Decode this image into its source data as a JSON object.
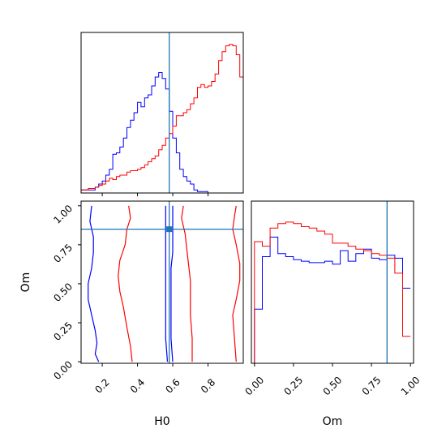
{
  "chart_data": {
    "type": "corner",
    "parameters": [
      "H0",
      "Om"
    ],
    "truths": {
      "H0": 0.58,
      "Om": 0.85
    },
    "colors": {
      "blue": "#0000ff",
      "red": "#ff0000",
      "truth": "#1f77b4"
    },
    "histograms": {
      "H0": {
        "bin_edges": [
          0.08,
          0.1,
          0.12,
          0.14,
          0.16,
          0.18,
          0.2,
          0.22,
          0.24,
          0.26,
          0.28,
          0.3,
          0.32,
          0.34,
          0.36,
          0.38,
          0.4,
          0.42,
          0.44,
          0.46,
          0.48,
          0.5,
          0.52,
          0.54,
          0.56,
          0.58,
          0.6,
          0.62,
          0.64,
          0.66,
          0.68,
          0.7,
          0.72,
          0.74,
          0.76,
          0.78,
          0.8,
          0.82,
          0.84,
          0.86,
          0.88,
          0.9,
          0.92,
          0.94,
          0.96,
          0.98,
          1.0
        ],
        "series": [
          {
            "color": "blue",
            "values": [
              0.02,
              0.02,
              0.02,
              0.02,
              0.04,
              0.06,
              0.08,
              0.12,
              0.16,
              0.26,
              0.27,
              0.31,
              0.37,
              0.44,
              0.49,
              0.54,
              0.61,
              0.58,
              0.64,
              0.66,
              0.72,
              0.78,
              0.81,
              0.77,
              0.7,
              0.55,
              0.37,
              0.27,
              0.16,
              0.11,
              0.08,
              0.06,
              0.02,
              0.01,
              0.01,
              0.01,
              0,
              0,
              0,
              0,
              0,
              0,
              0,
              0,
              0,
              0
            ]
          },
          {
            "color": "red",
            "values": [
              0.02,
              0.02,
              0.03,
              0.03,
              0.04,
              0.05,
              0.06,
              0.08,
              0.1,
              0.09,
              0.11,
              0.12,
              0.12,
              0.14,
              0.15,
              0.15,
              0.16,
              0.17,
              0.19,
              0.21,
              0.23,
              0.25,
              0.29,
              0.32,
              0.37,
              0.4,
              0.45,
              0.52,
              0.52,
              0.54,
              0.56,
              0.6,
              0.64,
              0.71,
              0.73,
              0.71,
              0.72,
              0.75,
              0.8,
              0.89,
              0.95,
              0.99,
              1.0,
              0.99,
              0.93,
              0.78
            ]
          }
        ],
        "xlim": [
          0.08,
          1.0
        ],
        "xticks": [
          0.2,
          0.4,
          0.6,
          0.8
        ]
      },
      "Om": {
        "bin_edges": [
          0.0,
          0.05,
          0.1,
          0.15,
          0.2,
          0.25,
          0.3,
          0.35,
          0.4,
          0.45,
          0.5,
          0.55,
          0.6,
          0.65,
          0.7,
          0.75,
          0.8,
          0.85,
          0.9,
          0.95,
          1.0
        ],
        "series": [
          {
            "color": "blue",
            "values": [
              0.36,
              0.71,
              0.84,
              0.73,
              0.71,
              0.69,
              0.68,
              0.67,
              0.67,
              0.68,
              0.66,
              0.75,
              0.68,
              0.73,
              0.76,
              0.7,
              0.69,
              0.72,
              0.7,
              0.5
            ]
          },
          {
            "color": "red",
            "values": [
              0.81,
              0.78,
              0.9,
              0.93,
              0.94,
              0.93,
              0.91,
              0.9,
              0.88,
              0.86,
              0.8,
              0.8,
              0.78,
              0.76,
              0.75,
              0.73,
              0.72,
              0.7,
              0.6,
              0.18
            ]
          }
        ],
        "xlim": [
          -0.02,
          1.02
        ],
        "xticks": [
          0.0,
          0.25,
          0.5,
          0.75,
          1.0
        ],
        "xtick_labels": [
          "0.00",
          "0.25",
          "0.50",
          "0.75",
          "1.00"
        ]
      }
    },
    "joint": {
      "x": "H0",
      "y": "Om",
      "xlim": [
        0.08,
        1.0
      ],
      "ylim": [
        -0.01,
        1.03
      ],
      "xticks": [
        0.2,
        0.4,
        0.6,
        0.8
      ],
      "yticks": [
        0.0,
        0.25,
        0.5,
        0.75,
        1.0
      ],
      "ytick_labels": [
        "0.00",
        "0.25",
        "0.50",
        "0.75",
        "1.00"
      ],
      "contours": [
        {
          "color": "blue",
          "levels": [
            {
              "x": [
                0.14,
                0.13,
                0.15,
                0.15,
                0.14,
                0.12,
                0.12,
                0.14,
                0.16,
                0.17,
                0.16,
                0.18
              ],
              "y": [
                1.0,
                0.9,
                0.8,
                0.7,
                0.6,
                0.5,
                0.4,
                0.3,
                0.2,
                0.12,
                0.05,
                0.0
              ]
            },
            {
              "x": [
                0.56,
                0.56,
                0.56,
                0.56,
                0.56,
                0.56,
                0.56,
                0.56,
                0.56,
                0.57
              ],
              "y": [
                1.0,
                0.9,
                0.8,
                0.7,
                0.6,
                0.5,
                0.4,
                0.3,
                0.15,
                0.0
              ]
            },
            {
              "x": [
                0.6,
                0.6,
                0.6,
                0.59,
                0.59,
                0.59,
                0.59,
                0.59,
                0.6
              ],
              "y": [
                1.0,
                0.85,
                0.7,
                0.6,
                0.5,
                0.4,
                0.3,
                0.15,
                0.0
              ]
            }
          ]
        },
        {
          "color": "red",
          "levels": [
            {
              "x": [
                0.35,
                0.36,
                0.34,
                0.33,
                0.3,
                0.29,
                0.3,
                0.32,
                0.34,
                0.36,
                0.37
              ],
              "y": [
                1.0,
                0.92,
                0.85,
                0.75,
                0.65,
                0.55,
                0.45,
                0.35,
                0.22,
                0.1,
                0.0
              ]
            },
            {
              "x": [
                0.66,
                0.65,
                0.67,
                0.68,
                0.69,
                0.7,
                0.7,
                0.7,
                0.71,
                0.71
              ],
              "y": [
                1.0,
                0.92,
                0.82,
                0.72,
                0.62,
                0.52,
                0.42,
                0.3,
                0.15,
                0.0
              ]
            },
            {
              "x": [
                0.96,
                0.95,
                0.94,
                0.96,
                0.98,
                0.98,
                0.96,
                0.94,
                0.95,
                0.96
              ],
              "y": [
                1.0,
                0.93,
                0.85,
                0.75,
                0.63,
                0.52,
                0.4,
                0.3,
                0.15,
                0.0
              ]
            }
          ]
        }
      ]
    },
    "xlabels": [
      "H0",
      "Om"
    ],
    "ylabels": [
      "Om"
    ]
  }
}
